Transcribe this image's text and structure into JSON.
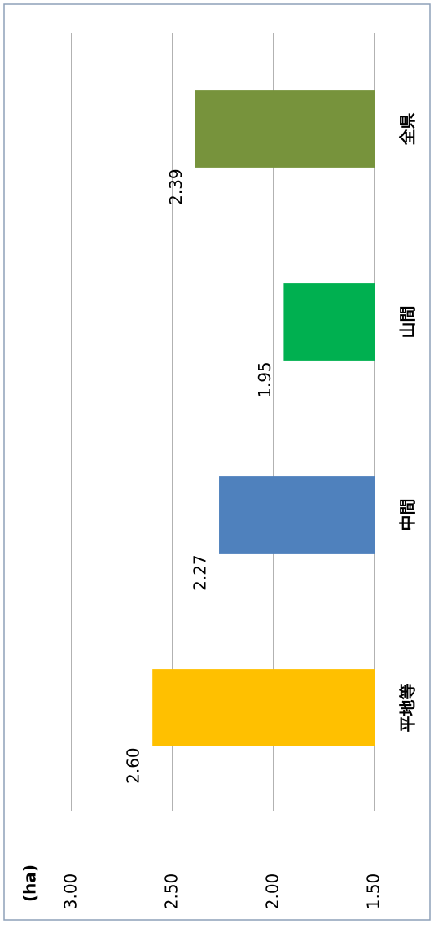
{
  "chart_data": {
    "type": "bar",
    "y_unit": "(ha)",
    "categories": [
      "平地等",
      "中間",
      "山間",
      "全県"
    ],
    "values": [
      2.6,
      2.27,
      1.95,
      2.39
    ],
    "value_labels": [
      "2.60",
      "2.27",
      "1.95",
      "2.39"
    ],
    "colors": [
      "#ffc000",
      "#4f81bd",
      "#00b050",
      "#77933c"
    ],
    "ylim": [
      1.5,
      3.0
    ],
    "yticks": [
      {
        "value": 1.5,
        "label": "1.50"
      },
      {
        "value": 2.0,
        "label": "2.00"
      },
      {
        "value": 2.5,
        "label": "2.50"
      },
      {
        "value": 3.0,
        "label": "3.00"
      }
    ],
    "grid": true
  }
}
